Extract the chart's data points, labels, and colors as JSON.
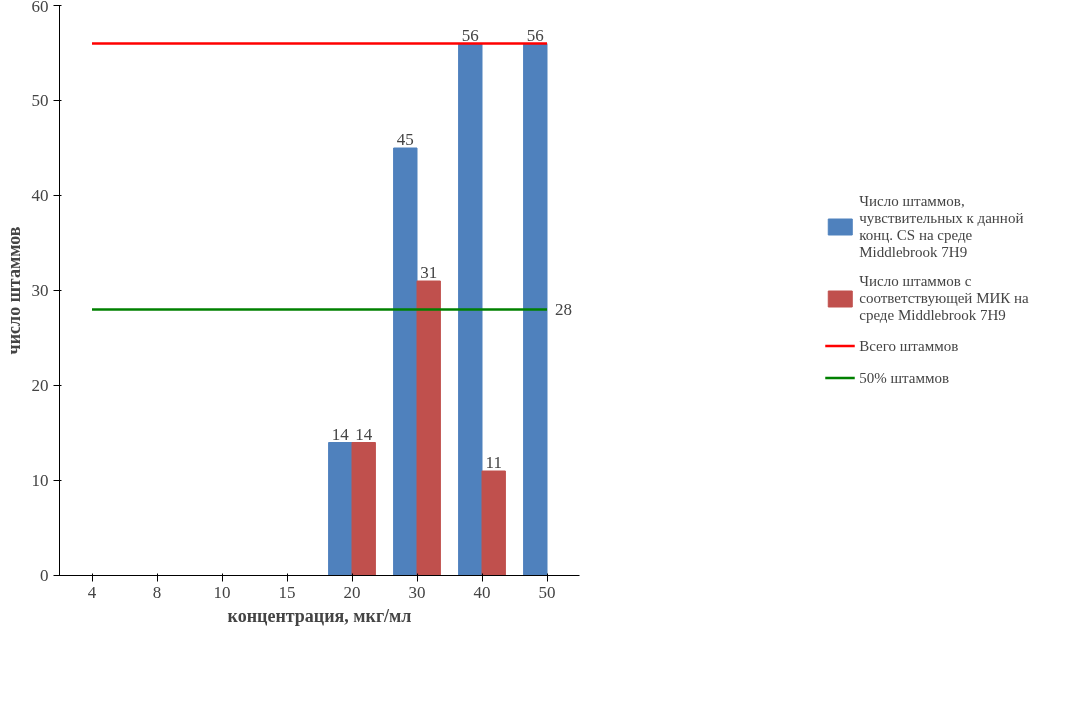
{
  "chart_data": {
    "type": "bar",
    "xlabel": "концентрация, мкг/мл",
    "ylabel": "число штаммов",
    "categories": [
      "4",
      "8",
      "10",
      "15",
      "20",
      "30",
      "40",
      "50"
    ],
    "series": [
      {
        "name": "Число штаммов, чувствительных к данной конц. CS на среде Middlebrook 7H9",
        "color": "#4f81bd",
        "values": [
          0,
          0,
          0,
          0,
          14,
          45,
          56,
          56
        ],
        "value_labels": [
          null,
          null,
          null,
          null,
          "14",
          "45",
          "56",
          "56"
        ]
      },
      {
        "name": "Число штаммов с соответствующей МИК на среде Middlebrook 7H9",
        "color": "#c0504d",
        "values": [
          0,
          0,
          0,
          0,
          14,
          31,
          11,
          0
        ],
        "value_labels": [
          null,
          null,
          null,
          null,
          "14",
          "31",
          "11",
          null
        ]
      },
      {
        "name": "Всего штаммов",
        "type": "line",
        "color": "#ff0000",
        "values": [
          56,
          56,
          56,
          56,
          56,
          56,
          56,
          56
        ]
      },
      {
        "name": "50% штаммов",
        "type": "line",
        "color": "#008000",
        "values": [
          28,
          28,
          28,
          28,
          28,
          28,
          28,
          28
        ],
        "value_labels": [
          null,
          null,
          null,
          null,
          null,
          null,
          null,
          "28"
        ]
      }
    ],
    "ylim": [
      0,
      60
    ],
    "yticks": [
      0,
      10,
      20,
      30,
      40,
      50,
      60
    ],
    "grid": false,
    "legend": "right"
  }
}
